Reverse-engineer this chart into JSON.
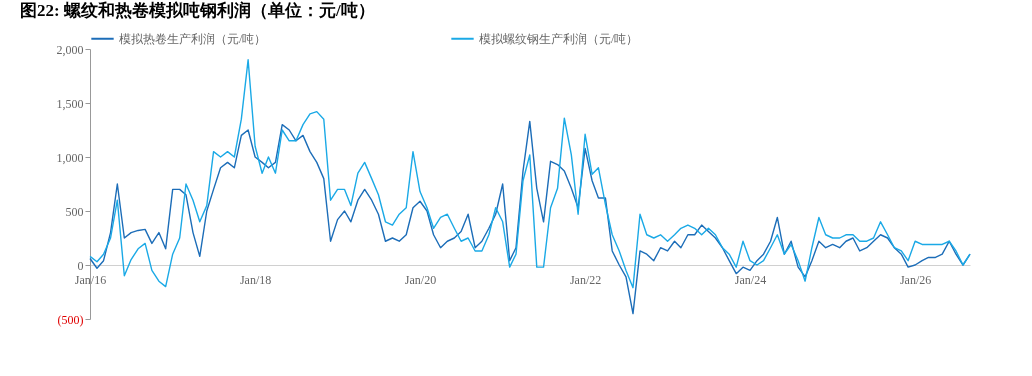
{
  "chart_data": {
    "type": "line",
    "title": "图22:  螺纹和热卷模拟吨钢利润（单位：元/吨）",
    "x": [
      "2016-01",
      "2016-02",
      "2016-03",
      "2016-04",
      "2016-05",
      "2016-06",
      "2016-07",
      "2016-08",
      "2016-09",
      "2016-10",
      "2016-11",
      "2016-12",
      "2017-01",
      "2017-02",
      "2017-03",
      "2017-04",
      "2017-05",
      "2017-06",
      "2017-07",
      "2017-08",
      "2017-09",
      "2017-10",
      "2017-11",
      "2017-12",
      "2018-01",
      "2018-02",
      "2018-03",
      "2018-04",
      "2018-05",
      "2018-06",
      "2018-07",
      "2018-08",
      "2018-09",
      "2018-10",
      "2018-11",
      "2018-12",
      "2019-01",
      "2019-02",
      "2019-03",
      "2019-04",
      "2019-05",
      "2019-06",
      "2019-07",
      "2019-08",
      "2019-09",
      "2019-10",
      "2019-11",
      "2019-12",
      "2020-01",
      "2020-02",
      "2020-03",
      "2020-04",
      "2020-05",
      "2020-06",
      "2020-07",
      "2020-08",
      "2020-09",
      "2020-10",
      "2020-11",
      "2020-12",
      "2021-01",
      "2021-02",
      "2021-03",
      "2021-04",
      "2021-05",
      "2021-06",
      "2021-07",
      "2021-08",
      "2021-09",
      "2021-10",
      "2021-11",
      "2021-12",
      "2022-01",
      "2022-02",
      "2022-03",
      "2022-04",
      "2022-05",
      "2022-06",
      "2022-07",
      "2022-08",
      "2022-09",
      "2022-10",
      "2022-11",
      "2022-12",
      "2023-01",
      "2023-02",
      "2023-03",
      "2023-04",
      "2023-05",
      "2023-06",
      "2023-07",
      "2023-08",
      "2023-09",
      "2023-10",
      "2023-11",
      "2023-12",
      "2024-01",
      "2024-02",
      "2024-03",
      "2024-04",
      "2024-05",
      "2024-06",
      "2024-07",
      "2024-08",
      "2024-09",
      "2024-10",
      "2024-11",
      "2024-12",
      "2025-01",
      "2025-02",
      "2025-03",
      "2025-04",
      "2025-05",
      "2025-06",
      "2025-07",
      "2025-08",
      "2025-09",
      "2025-10",
      "2025-11",
      "2025-12",
      "2026-01",
      "2026-02",
      "2026-03",
      "2026-04",
      "2026-05",
      "2026-06",
      "2026-07",
      "2026-08",
      "2026-09"
    ],
    "series": [
      {
        "name": "模拟热卷生产利润（元/吨）",
        "color": "#1c6db8",
        "values": [
          60,
          -30,
          40,
          300,
          750,
          250,
          300,
          320,
          330,
          200,
          300,
          150,
          700,
          700,
          650,
          300,
          80,
          500,
          700,
          900,
          950,
          900,
          1200,
          1250,
          1000,
          950,
          900,
          950,
          1300,
          1250,
          1150,
          1200,
          1050,
          950,
          800,
          220,
          420,
          500,
          400,
          600,
          700,
          600,
          470,
          220,
          250,
          220,
          280,
          530,
          590,
          500,
          280,
          160,
          220,
          250,
          310,
          470,
          160,
          220,
          340,
          470,
          750,
          40,
          160,
          870,
          1330,
          710,
          400,
          960,
          930,
          870,
          710,
          530,
          1080,
          780,
          620,
          620,
          130,
          0,
          -110,
          -450,
          130,
          100,
          40,
          160,
          130,
          220,
          160,
          280,
          280,
          370,
          310,
          250,
          160,
          40,
          -80,
          -20,
          -50,
          40,
          100,
          220,
          440,
          100,
          220,
          -20,
          -110,
          40,
          220,
          160,
          190,
          160,
          220,
          250,
          130,
          160,
          220,
          280,
          250,
          160,
          100,
          -20,
          0,
          40,
          70,
          70,
          100,
          220,
          100,
          0,
          100
        ]
      },
      {
        "name": "模拟螺纹钢生产利润（元/吨）",
        "color": "#1aa9e6",
        "values": [
          80,
          30,
          100,
          250,
          600,
          -100,
          50,
          150,
          200,
          -50,
          -150,
          -200,
          100,
          250,
          750,
          600,
          400,
          550,
          1050,
          1000,
          1050,
          1000,
          1350,
          1900,
          1100,
          850,
          1000,
          850,
          1250,
          1150,
          1150,
          1300,
          1400,
          1420,
          1350,
          600,
          700,
          700,
          550,
          850,
          950,
          800,
          650,
          400,
          370,
          470,
          530,
          1050,
          680,
          530,
          340,
          440,
          470,
          340,
          220,
          250,
          130,
          130,
          280,
          530,
          400,
          -20,
          100,
          780,
          1020,
          -20,
          -20,
          530,
          710,
          1360,
          1020,
          470,
          1210,
          840,
          900,
          560,
          280,
          130,
          -50,
          -210,
          470,
          280,
          250,
          280,
          220,
          280,
          340,
          370,
          340,
          280,
          340,
          280,
          160,
          100,
          -20,
          220,
          40,
          0,
          40,
          160,
          280,
          100,
          190,
          40,
          -150,
          160,
          440,
          280,
          250,
          250,
          280,
          280,
          220,
          220,
          250,
          400,
          280,
          160,
          130,
          40,
          220,
          190,
          190,
          190,
          190,
          220,
          130,
          0,
          100
        ]
      }
    ],
    "xlim": [
      "2016-01",
      "2026-09"
    ],
    "xticks": [
      {
        "value": "2016-01",
        "label": "Jan/16"
      },
      {
        "value": "2018-01",
        "label": "Jan/18"
      },
      {
        "value": "2020-01",
        "label": "Jan/20"
      },
      {
        "value": "2022-01",
        "label": "Jan/22"
      },
      {
        "value": "2024-01",
        "label": "Jan/24"
      },
      {
        "value": "2026-01",
        "label": "Jan/26"
      }
    ],
    "ylim": [
      -500,
      2000
    ],
    "yticks": [
      {
        "value": -500,
        "label": "(500)"
      },
      0,
      500,
      {
        "value": 1000,
        "label": "1,000"
      },
      {
        "value": 1500,
        "label": "1,500"
      },
      {
        "value": 2000,
        "label": "2,000"
      }
    ],
    "grid": false,
    "legend": "top"
  }
}
